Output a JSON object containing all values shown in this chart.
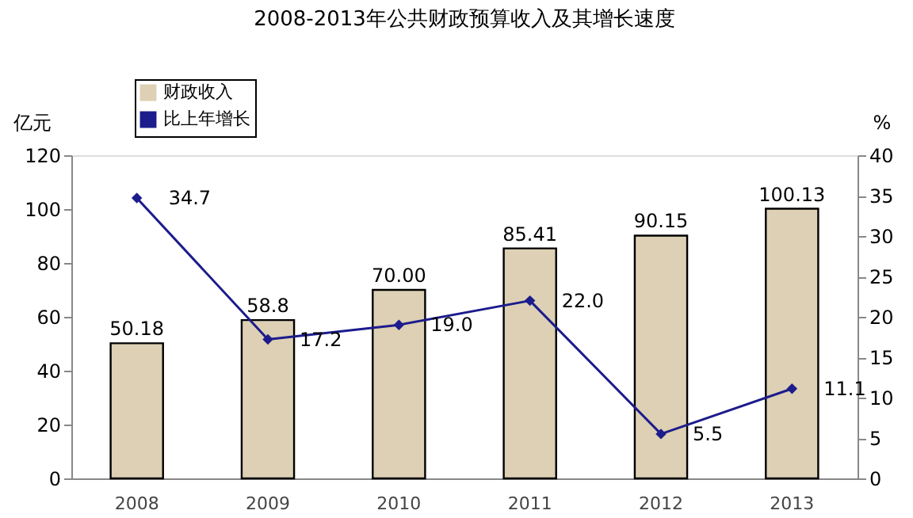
{
  "chart_data": {
    "type": "bar",
    "title": "2008-2013年公共财政预算收入及其增长速度",
    "categories": [
      "2008",
      "2009",
      "2010",
      "2011",
      "2012",
      "2013"
    ],
    "ylabel": "亿元",
    "y2label": "%",
    "series": [
      {
        "name": "财政收入",
        "color": "#ddd0b4",
        "values": [
          50.18,
          58.8,
          70.0,
          85.41,
          90.15,
          100.13
        ],
        "value_labels": [
          "50.18",
          "58.8",
          "70.00",
          "85.41",
          "90.15",
          "100.13"
        ]
      },
      {
        "name": "比上年增长",
        "type": "line",
        "axis": "y2",
        "color": "#1c1c8c",
        "marker": "diamond",
        "values": [
          34.7,
          17.2,
          19.0,
          22.0,
          5.5,
          11.1
        ],
        "value_labels": [
          "34.7",
          "17.2",
          "19.0",
          "22.0",
          "5.5",
          "11.1"
        ]
      }
    ],
    "ylim": [
      0,
      120
    ],
    "yticks": [
      0,
      20,
      40,
      60,
      80,
      100,
      120
    ],
    "y2lim": [
      0,
      40
    ],
    "y2ticks": [
      0,
      5,
      10,
      15,
      20,
      25,
      30,
      35,
      40
    ],
    "legend": "top left",
    "grid": false
  }
}
